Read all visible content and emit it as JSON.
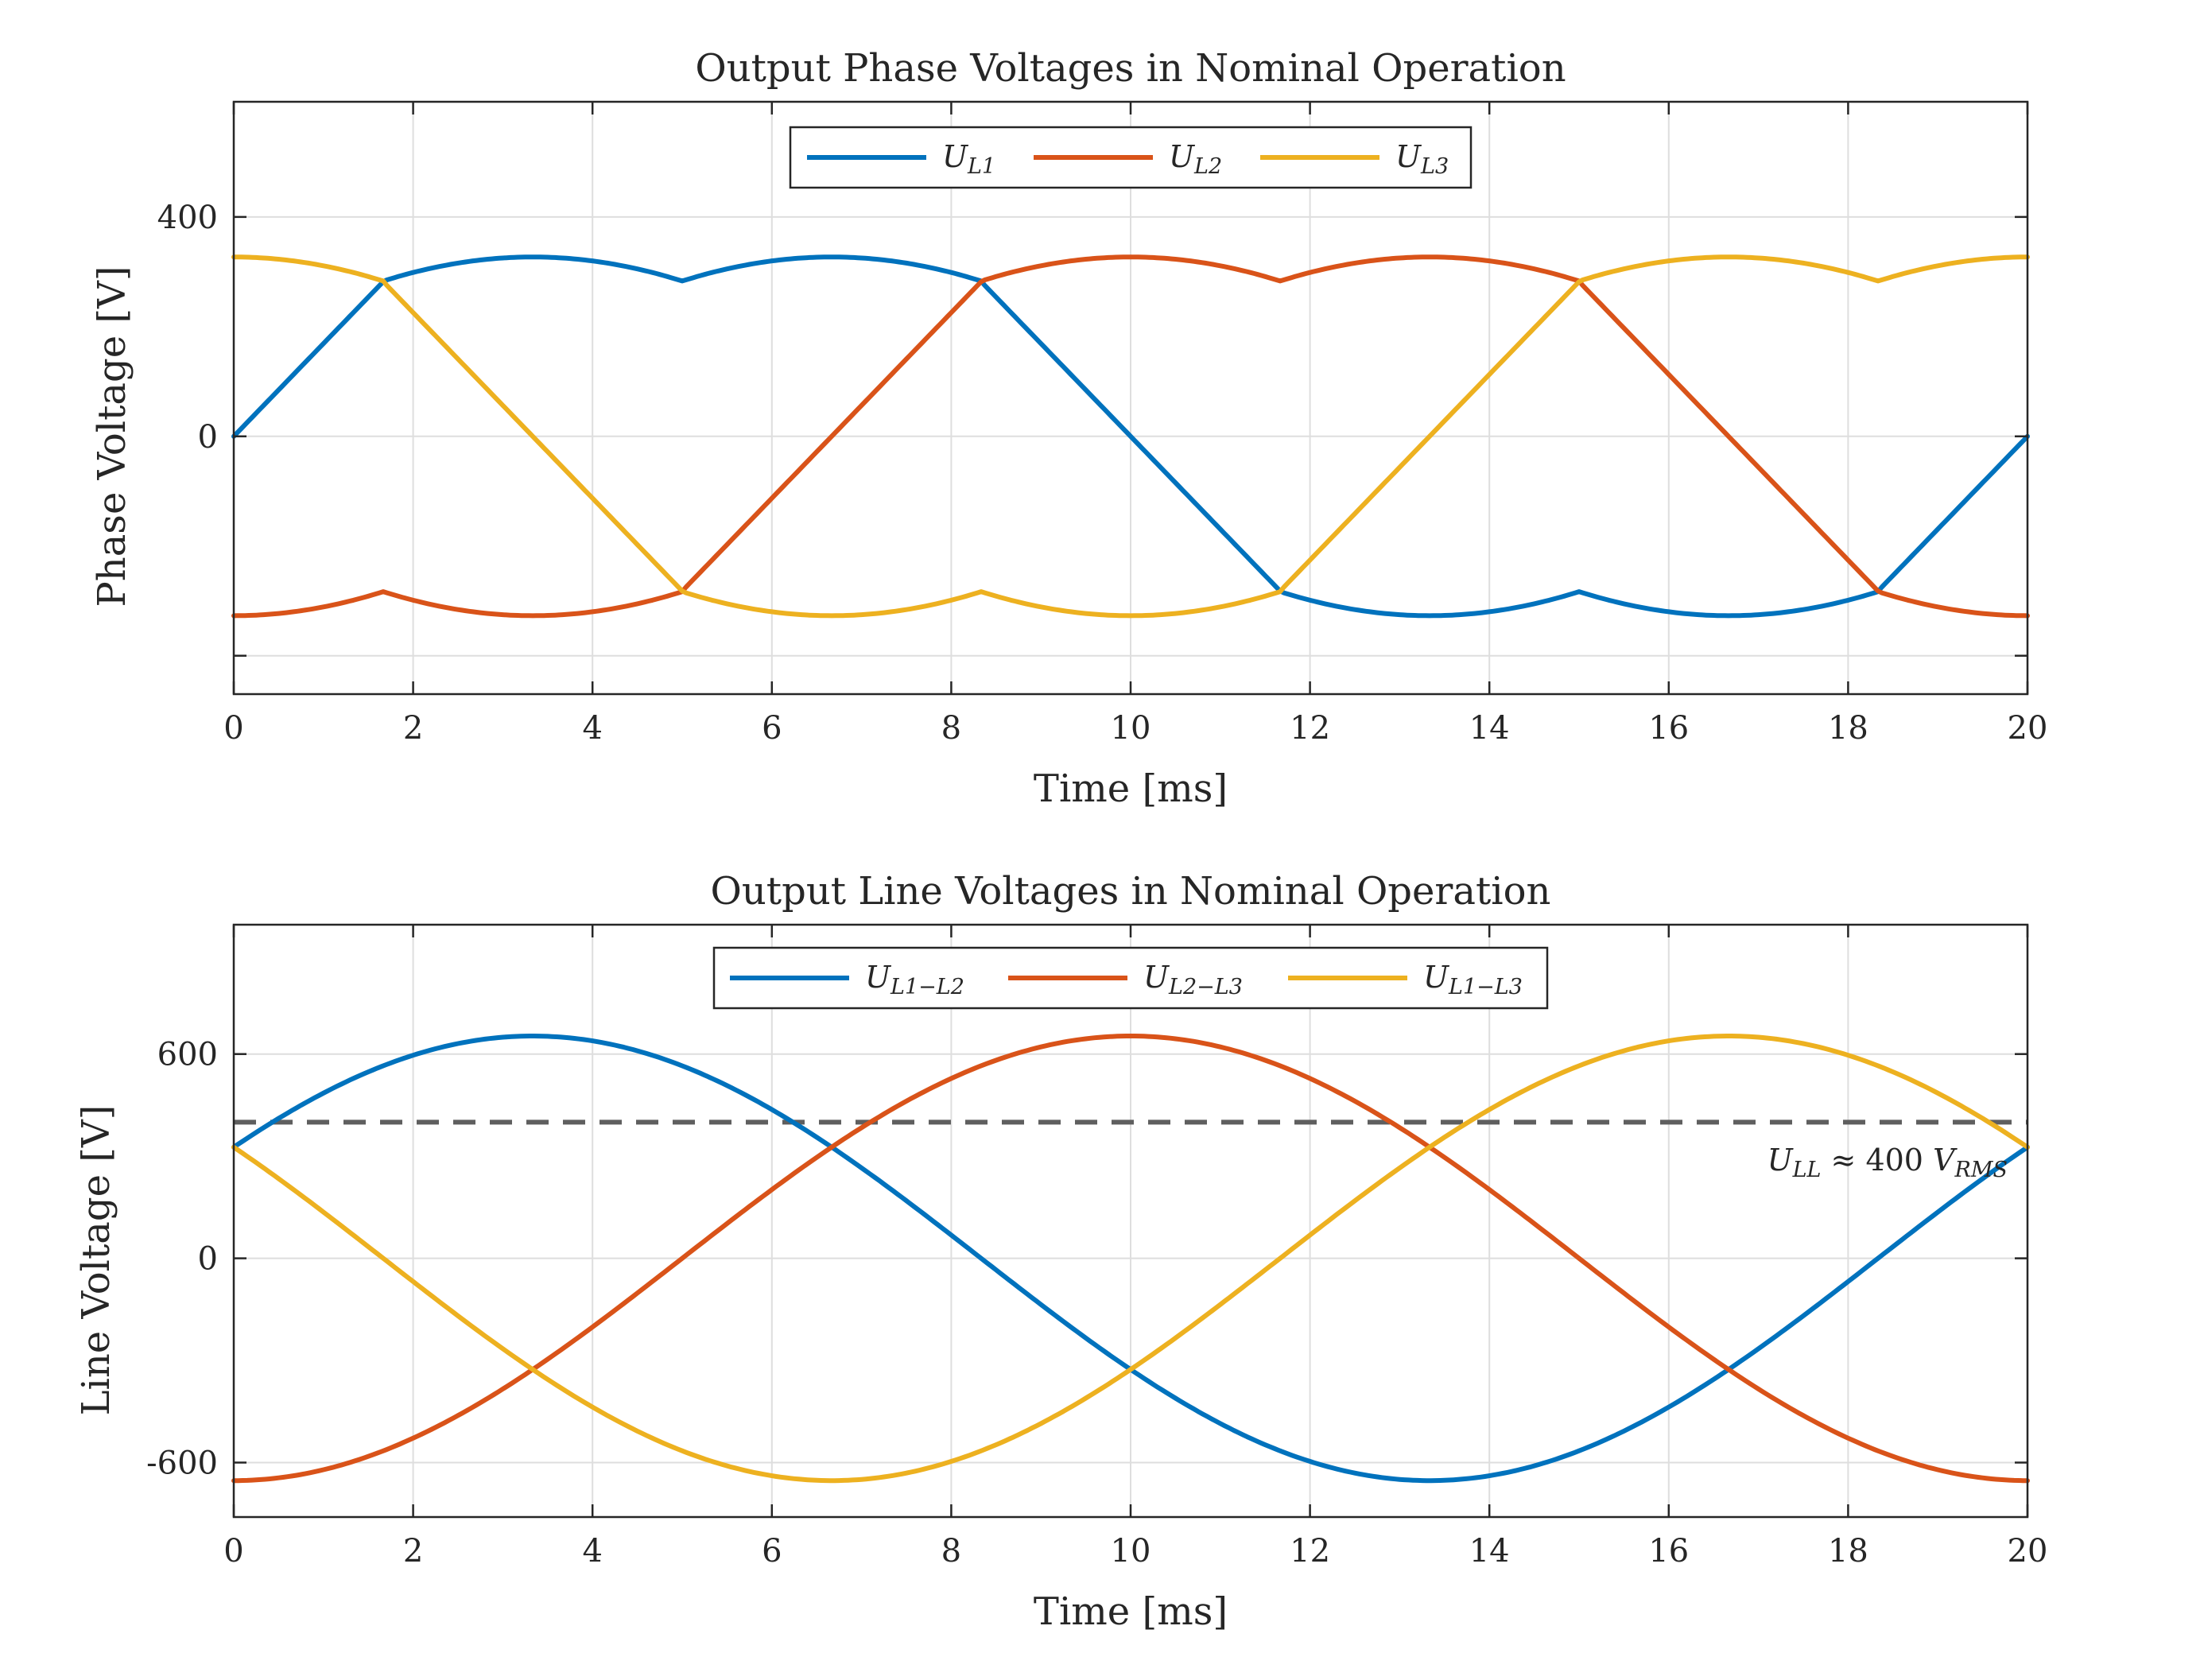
{
  "colors": {
    "L1": "#0072BD",
    "L2": "#D95319",
    "L3": "#EDB120",
    "ref": "#5f5f5f"
  },
  "chart_data": [
    {
      "type": "line",
      "title": "Output Phase Voltages in Nominal Operation",
      "xlabel": "Time [ms]",
      "ylabel": "Phase Voltage [V]",
      "xlim": [
        0,
        20
      ],
      "ylim": [
        -470,
        610
      ],
      "xticks": [
        0,
        2,
        4,
        6,
        8,
        10,
        12,
        14,
        16,
        18,
        20
      ],
      "yticks": [
        -400,
        0,
        400
      ],
      "ytick_labels": [
        "",
        "0",
        "400"
      ],
      "grid": true,
      "legend": {
        "placement": "top",
        "orientation": "horizontal"
      },
      "series": [
        {
          "name_main": "U",
          "name_sub": "L1",
          "color_key": "L1",
          "x": [
            0,
            1.667,
            3.333,
            5,
            6.667,
            8.333,
            10,
            11.667,
            13.333,
            15,
            16.667,
            18.333,
            20
          ],
          "y": [
            0,
            282,
            327,
            282,
            327,
            282,
            0,
            -282,
            -327,
            -282,
            -327,
            -282,
            0
          ]
        },
        {
          "name_main": "U",
          "name_sub": "L2",
          "color_key": "L2",
          "x": [
            0,
            1.667,
            3.333,
            5,
            6.667,
            8.333,
            10,
            11.667,
            13.333,
            15,
            16.667,
            18.333,
            20
          ],
          "y": [
            -327,
            -282,
            -327,
            -282,
            0,
            282,
            327,
            282,
            327,
            282,
            0,
            -282,
            -327
          ]
        },
        {
          "name_main": "U",
          "name_sub": "L3",
          "color_key": "L3",
          "x": [
            0,
            1.667,
            3.333,
            5,
            6.667,
            8.333,
            10,
            11.667,
            13.333,
            15,
            16.667,
            18.333,
            20
          ],
          "y": [
            327,
            282,
            0,
            -282,
            -327,
            -282,
            -327,
            -282,
            0,
            282,
            327,
            282,
            327
          ]
        }
      ]
    },
    {
      "type": "line",
      "title": "Output Line Voltages in Nominal Operation",
      "xlabel": "Time [ms]",
      "ylabel": "Line Voltage [V]",
      "xlim": [
        0,
        20
      ],
      "ylim": [
        -760,
        980
      ],
      "xticks": [
        0,
        2,
        4,
        6,
        8,
        10,
        12,
        14,
        16,
        18,
        20
      ],
      "yticks": [
        -600,
        0,
        600
      ],
      "ytick_labels": [
        "-600",
        "0",
        "600"
      ],
      "grid": true,
      "legend": {
        "placement": "top",
        "orientation": "horizontal"
      },
      "series": [
        {
          "name_main": "U",
          "name_sub": "L1−L2",
          "color_key": "L1",
          "amplitude": 653,
          "frequency_hz": 50,
          "phase_deg": 30
        },
        {
          "name_main": "U",
          "name_sub": "L2−L3",
          "color_key": "L2",
          "amplitude": 653,
          "frequency_hz": 50,
          "phase_deg": -90
        },
        {
          "name_main": "U",
          "name_sub": "L1−L3",
          "color_key": "L3",
          "amplitude": 653,
          "frequency_hz": 50,
          "phase_deg": 150
        }
      ],
      "reference_line": {
        "y": 400,
        "style": "dashed"
      },
      "annotation": {
        "main": "U",
        "sub": "LL",
        "middle": " ≈ 400 ",
        "main2": "V",
        "sub2": "RMS"
      }
    }
  ]
}
